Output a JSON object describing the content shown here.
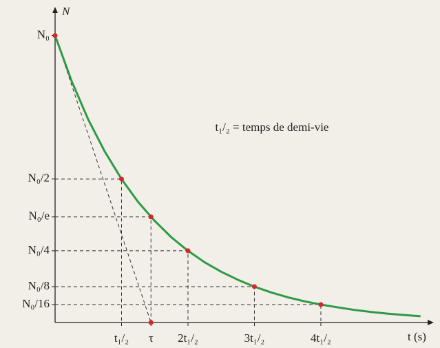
{
  "chart_data": {
    "type": "line",
    "y_label": "N",
    "x_label": "t (s)",
    "annotation": "t₁/₂ = temps de demi-vie",
    "xlim": [
      0,
      5.7
    ],
    "ylim": [
      0,
      1.1
    ],
    "xticks": [
      {
        "value": 1,
        "label": "t₁/₂"
      },
      {
        "value": 1.443,
        "label": "τ"
      },
      {
        "value": 2,
        "label": "2t₁/₂"
      },
      {
        "value": 3,
        "label": "3t₁/₂"
      },
      {
        "value": 4,
        "label": "4t₁/₂"
      }
    ],
    "yticks": [
      {
        "value": 1,
        "label": "N₀"
      },
      {
        "value": 0.5,
        "label": "N₀/2"
      },
      {
        "value": 0.368,
        "label": "N₀/e"
      },
      {
        "value": 0.25,
        "label": "N₀/4"
      },
      {
        "value": 0.125,
        "label": "N₀/8"
      },
      {
        "value": 0.0625,
        "label": "N₀/16"
      }
    ],
    "curve": {
      "color": "#2e9a44",
      "x": [
        0,
        0.25,
        0.5,
        0.75,
        1,
        1.25,
        1.5,
        1.75,
        2,
        2.25,
        2.5,
        2.75,
        3,
        3.25,
        3.5,
        3.75,
        4,
        4.25,
        4.5,
        4.75,
        5,
        5.25,
        5.5
      ],
      "values": [
        1,
        0.841,
        0.707,
        0.595,
        0.5,
        0.42,
        0.354,
        0.297,
        0.25,
        0.21,
        0.177,
        0.149,
        0.125,
        0.105,
        0.088,
        0.074,
        0.0625,
        0.053,
        0.044,
        0.037,
        0.031,
        0.026,
        0.022
      ]
    },
    "points": {
      "color": "#d4262c",
      "x": [
        0,
        1,
        1.443,
        2,
        3,
        4
      ],
      "values": [
        1,
        0.5,
        0.368,
        0.25,
        0.125,
        0.0625
      ]
    }
  }
}
